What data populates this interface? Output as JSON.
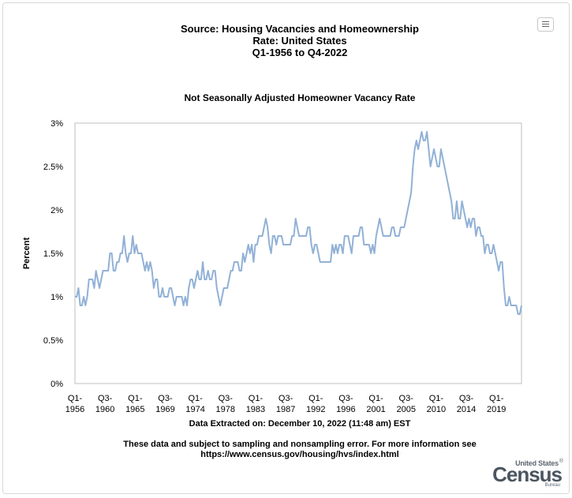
{
  "header": {
    "title_lines": [
      "Source: Housing Vacancies and Homeownership",
      "Rate: United States",
      "Q1-1956 to Q4-2022"
    ],
    "menu_icon": "hamburger-menu-icon"
  },
  "chart_data": {
    "type": "line",
    "title": "Not Seasonally Adjusted Homeowner Vacancy Rate",
    "xlabel": "",
    "ylabel": "Percent",
    "ylim": [
      0,
      3
    ],
    "y_ticks": [
      "0%",
      "0.5%",
      "1%",
      "1.5%",
      "2%",
      "2.5%",
      "3%"
    ],
    "x_range": [
      "Q1-1956",
      "Q4-2022"
    ],
    "x_ticks": [
      {
        "line1": "Q1-",
        "line2": "1956",
        "quarter": "Q1-1956"
      },
      {
        "line1": "Q3-",
        "line2": "1960",
        "quarter": "Q3-1960"
      },
      {
        "line1": "Q1-",
        "line2": "1965",
        "quarter": "Q1-1965"
      },
      {
        "line1": "Q3-",
        "line2": "1969",
        "quarter": "Q3-1969"
      },
      {
        "line1": "Q1-",
        "line2": "1974",
        "quarter": "Q1-1974"
      },
      {
        "line1": "Q3-",
        "line2": "1978",
        "quarter": "Q3-1978"
      },
      {
        "line1": "Q1-",
        "line2": "1983",
        "quarter": "Q1-1983"
      },
      {
        "line1": "Q3-",
        "line2": "1987",
        "quarter": "Q3-1987"
      },
      {
        "line1": "Q1-",
        "line2": "1992",
        "quarter": "Q1-1992"
      },
      {
        "line1": "Q3-",
        "line2": "1996",
        "quarter": "Q3-1996"
      },
      {
        "line1": "Q1-",
        "line2": "2001",
        "quarter": "Q1-2001"
      },
      {
        "line1": "Q3-",
        "line2": "2005",
        "quarter": "Q3-2005"
      },
      {
        "line1": "Q1-",
        "line2": "2010",
        "quarter": "Q1-2010"
      },
      {
        "line1": "Q3-",
        "line2": "2014",
        "quarter": "Q3-2014"
      },
      {
        "line1": "Q1-",
        "line2": "2019",
        "quarter": "Q1-2019"
      }
    ],
    "grid": false,
    "legend": "none",
    "line_color": "#92b1d6",
    "series": [
      {
        "values": [
          1.0,
          1.0,
          1.1,
          0.9,
          0.9,
          1.0,
          0.9,
          1.0,
          1.2,
          1.2,
          1.2,
          1.1,
          1.3,
          1.2,
          1.1,
          1.2,
          1.3,
          1.3,
          1.3,
          1.3,
          1.5,
          1.5,
          1.3,
          1.3,
          1.4,
          1.4,
          1.5,
          1.5,
          1.7,
          1.5,
          1.4,
          1.5,
          1.5,
          1.7,
          1.5,
          1.6,
          1.5,
          1.5,
          1.5,
          1.4,
          1.3,
          1.4,
          1.3,
          1.4,
          1.3,
          1.1,
          1.2,
          1.2,
          1.0,
          1.0,
          1.1,
          1.0,
          1.0,
          1.0,
          1.1,
          1.1,
          1.0,
          0.9,
          1.0,
          1.0,
          1.0,
          1.0,
          0.9,
          1.0,
          0.9,
          1.1,
          1.2,
          1.2,
          1.1,
          1.2,
          1.3,
          1.2,
          1.2,
          1.4,
          1.2,
          1.2,
          1.3,
          1.2,
          1.2,
          1.3,
          1.3,
          1.1,
          1.0,
          0.9,
          1.0,
          1.1,
          1.1,
          1.1,
          1.2,
          1.3,
          1.3,
          1.4,
          1.4,
          1.4,
          1.3,
          1.3,
          1.5,
          1.4,
          1.5,
          1.6,
          1.5,
          1.6,
          1.4,
          1.6,
          1.6,
          1.7,
          1.7,
          1.7,
          1.8,
          1.9,
          1.8,
          1.6,
          1.5,
          1.7,
          1.7,
          1.6,
          1.7,
          1.7,
          1.7,
          1.6,
          1.6,
          1.6,
          1.6,
          1.6,
          1.7,
          1.7,
          1.9,
          1.8,
          1.7,
          1.7,
          1.7,
          1.7,
          1.7,
          1.8,
          1.8,
          1.6,
          1.5,
          1.6,
          1.6,
          1.5,
          1.4,
          1.4,
          1.4,
          1.4,
          1.4,
          1.4,
          1.4,
          1.6,
          1.5,
          1.6,
          1.5,
          1.6,
          1.6,
          1.5,
          1.7,
          1.7,
          1.7,
          1.6,
          1.5,
          1.7,
          1.7,
          1.7,
          1.7,
          1.8,
          1.8,
          1.6,
          1.6,
          1.6,
          1.6,
          1.5,
          1.6,
          1.5,
          1.7,
          1.8,
          1.9,
          1.8,
          1.7,
          1.7,
          1.7,
          1.7,
          1.7,
          1.8,
          1.8,
          1.7,
          1.7,
          1.7,
          1.8,
          1.8,
          1.8,
          1.9,
          2.0,
          2.1,
          2.2,
          2.5,
          2.7,
          2.8,
          2.7,
          2.8,
          2.9,
          2.8,
          2.8,
          2.9,
          2.7,
          2.5,
          2.6,
          2.7,
          2.6,
          2.5,
          2.5,
          2.7,
          2.6,
          2.5,
          2.4,
          2.3,
          2.2,
          2.1,
          1.9,
          1.9,
          2.1,
          1.9,
          1.9,
          2.1,
          2.0,
          1.9,
          1.8,
          1.9,
          1.8,
          1.9,
          1.9,
          1.7,
          1.8,
          1.8,
          1.7,
          1.7,
          1.5,
          1.6,
          1.6,
          1.5,
          1.5,
          1.6,
          1.5,
          1.4,
          1.3,
          1.4,
          1.4,
          1.1,
          0.9,
          0.9,
          1.0,
          0.9,
          0.9,
          0.9,
          0.9,
          0.8,
          0.8,
          0.9
        ]
      }
    ]
  },
  "footer": {
    "extracted": "Data Extracted on: December 10, 2022 (11:48 am) EST",
    "disclaimer_lines": [
      "These data and subject to sampling and nonsampling error. For more information see",
      "https://www.census.gov/housing/hvs/index.html"
    ]
  },
  "logo": {
    "line1": "United States",
    "mark": "®",
    "line2": "Census",
    "line3": "Bureau"
  }
}
